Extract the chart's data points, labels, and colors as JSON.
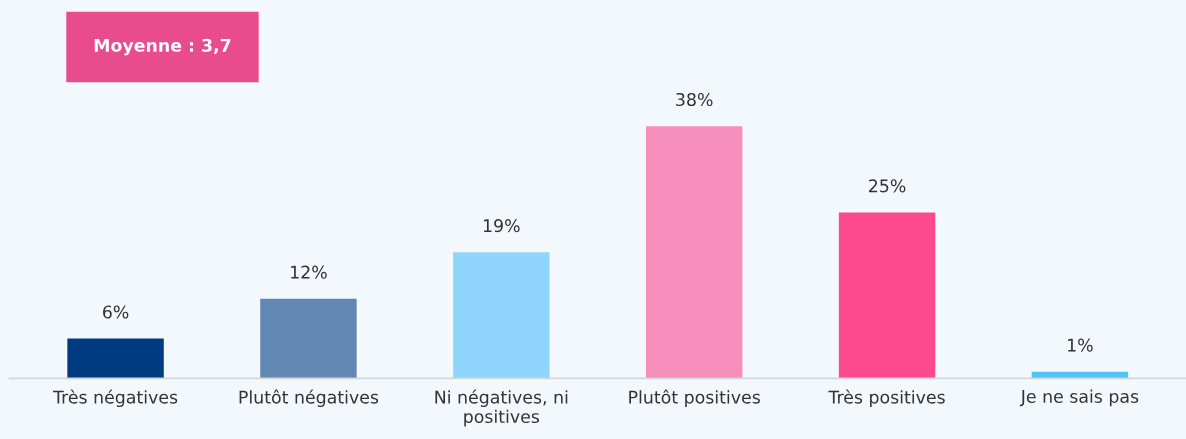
{
  "chart_data": {
    "type": "bar",
    "categories": [
      "Très négatives",
      "Plutôt négatives",
      "Ni négatives, ni\npositives",
      "Plutôt positives",
      "Très positives",
      "Je ne sais pas"
    ],
    "values": [
      6,
      12,
      19,
      38,
      25,
      1
    ],
    "colors": [
      "#003a80",
      "#6088b3",
      "#90d5fc",
      "#f78fbd",
      "#fd4a8e",
      "#53c2f5"
    ],
    "value_labels": [
      "6%",
      "12%",
      "19%",
      "38%",
      "25%",
      "1%"
    ],
    "annotations": [
      "Moyenne : 3,7"
    ],
    "grid": false,
    "legend": false
  }
}
